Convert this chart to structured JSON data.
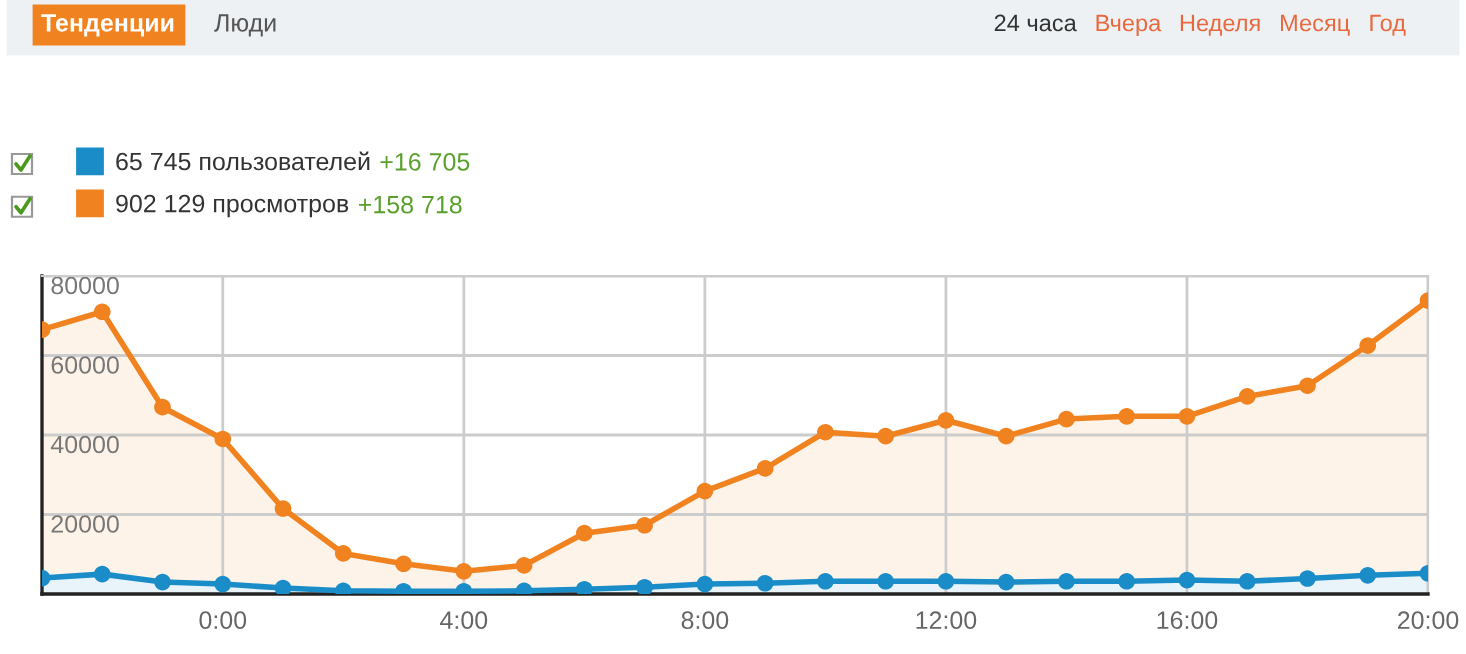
{
  "chart_data": {
    "type": "area",
    "x": [
      -3,
      -2,
      -1,
      0,
      1,
      2,
      3,
      4,
      5,
      6,
      7,
      8,
      9,
      10,
      11,
      12,
      13,
      14,
      15,
      16,
      17,
      18,
      19,
      20
    ],
    "series": [
      {
        "name": "65 745 пользователей",
        "color": "#1a8dc8",
        "values": [
          4000,
          5000,
          3000,
          2500,
          1500,
          800,
          700,
          700,
          800,
          1200,
          1700,
          2500,
          2700,
          3200,
          3200,
          3200,
          3000,
          3200,
          3200,
          3500,
          3200,
          3900,
          4700,
          5200
        ]
      },
      {
        "name": "902 129 просмотров",
        "color": "#f0831f",
        "values": [
          66500,
          71000,
          47000,
          39000,
          21500,
          10200,
          7600,
          5700,
          7200,
          15300,
          17300,
          25900,
          31600,
          40700,
          39700,
          43700,
          39700,
          44000,
          44700,
          44700,
          49700,
          52400,
          62500,
          73800
        ]
      }
    ],
    "xlim": [
      -3,
      20
    ],
    "xticks": [
      {
        "value": 0,
        "label": "0:00"
      },
      {
        "value": 4,
        "label": "4:00"
      },
      {
        "value": 8,
        "label": "8:00"
      },
      {
        "value": 12,
        "label": "12:00"
      },
      {
        "value": 16,
        "label": "16:00"
      },
      {
        "value": 20,
        "label": "20:00"
      }
    ],
    "ylim": [
      0,
      80000
    ],
    "yticks": [
      20000,
      40000,
      60000,
      80000
    ],
    "grid": true,
    "legend": "top left",
    "marker": "circle",
    "line_style": "solid",
    "annotations": [
      "Тенденции",
      "Люди",
      "24 часа",
      "Вчера",
      "Неделя",
      "Месяц",
      "Год",
      "+16 705",
      "+158 718"
    ]
  }
}
